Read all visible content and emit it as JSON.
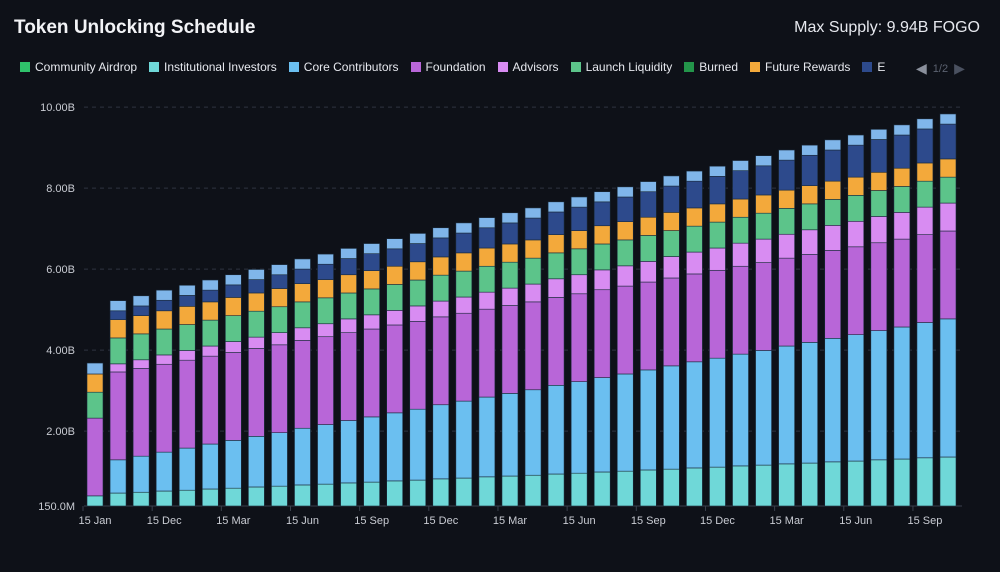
{
  "header": {
    "title": "Token Unlocking Schedule",
    "max_supply": "Max Supply: 9.94B FOGO"
  },
  "legend": {
    "page": "1/2",
    "items": [
      {
        "label": "Community Airdrop",
        "color": "#2fc26b"
      },
      {
        "label": "Institutional Investors",
        "color": "#6fd8d8"
      },
      {
        "label": "Core Contributors",
        "color": "#6bbff0"
      },
      {
        "label": "Foundation",
        "color": "#b866d8"
      },
      {
        "label": "Advisors",
        "color": "#d88cf2"
      },
      {
        "label": "Launch Liquidity",
        "color": "#5cc48a"
      },
      {
        "label": "Burned",
        "color": "#23954a"
      },
      {
        "label": "Future Rewards",
        "color": "#f3a93b"
      },
      {
        "label": "E",
        "color": "#2d4a8c"
      }
    ]
  },
  "chart_data": {
    "type": "bar",
    "stacked": true,
    "ylim": [
      0.15,
      10.2
    ],
    "y_unit": "B",
    "y_tick_labels": [
      {
        "v": 0.15,
        "label": "150.0M"
      },
      {
        "v": 2,
        "label": "2.00B"
      },
      {
        "v": 4,
        "label": "4.00B"
      },
      {
        "v": 6,
        "label": "6.00B"
      },
      {
        "v": 8,
        "label": "8.00B"
      },
      {
        "v": 10,
        "label": "10.00B"
      }
    ],
    "x_tick_labels": [
      "15 Jan",
      "15 Dec",
      "15 Mar",
      "15 Jun",
      "15 Sep",
      "15 Dec",
      "15 Mar",
      "15 Jun",
      "15 Sep",
      "15 Dec",
      "15 Mar",
      "15 Jun",
      "15 Sep"
    ],
    "x_tick_every": 3,
    "grid": true,
    "series": [
      {
        "name": "Institutional Investors",
        "color": "#6fd8d8",
        "values": [
          0.4,
          0.47,
          0.49,
          0.52,
          0.54,
          0.57,
          0.59,
          0.62,
          0.64,
          0.67,
          0.69,
          0.72,
          0.74,
          0.77,
          0.79,
          0.82,
          0.84,
          0.87,
          0.89,
          0.91,
          0.94,
          0.96,
          0.99,
          1.01,
          1.04,
          1.06,
          1.09,
          1.11,
          1.14,
          1.16,
          1.19,
          1.21,
          1.24,
          1.26,
          1.29,
          1.31,
          1.34,
          1.36
        ]
      },
      {
        "name": "Core Contributors",
        "color": "#6bbff0",
        "values": [
          0,
          0.82,
          0.89,
          0.96,
          1.04,
          1.11,
          1.18,
          1.25,
          1.32,
          1.4,
          1.47,
          1.54,
          1.61,
          1.68,
          1.75,
          1.83,
          1.9,
          1.97,
          2.04,
          2.11,
          2.19,
          2.26,
          2.33,
          2.4,
          2.47,
          2.55,
          2.62,
          2.69,
          2.76,
          2.83,
          2.91,
          2.98,
          3.05,
          3.12,
          3.19,
          3.26,
          3.34,
          3.41
        ]
      },
      {
        "name": "Foundation",
        "color": "#b866d8",
        "values": [
          1.92,
          2.17,
          2.17,
          2.17,
          2.17,
          2.17,
          2.17,
          2.17,
          2.17,
          2.17,
          2.17,
          2.17,
          2.17,
          2.17,
          2.17,
          2.17,
          2.17,
          2.17,
          2.17,
          2.17,
          2.17,
          2.17,
          2.17,
          2.17,
          2.17,
          2.17,
          2.17,
          2.17,
          2.17,
          2.17,
          2.17,
          2.17,
          2.17,
          2.17,
          2.17,
          2.17,
          2.17,
          2.17
        ]
      },
      {
        "name": "Advisors",
        "color": "#d88cf2",
        "values": [
          0,
          0.2,
          0.21,
          0.23,
          0.24,
          0.25,
          0.27,
          0.28,
          0.3,
          0.31,
          0.32,
          0.34,
          0.35,
          0.36,
          0.38,
          0.39,
          0.4,
          0.42,
          0.43,
          0.44,
          0.46,
          0.47,
          0.49,
          0.5,
          0.51,
          0.53,
          0.54,
          0.55,
          0.57,
          0.58,
          0.59,
          0.61,
          0.62,
          0.63,
          0.65,
          0.66,
          0.68,
          0.69
        ]
      },
      {
        "name": "Launch Liquidity",
        "color": "#5cc48a",
        "values": [
          0.64,
          0.64,
          0.64,
          0.64,
          0.64,
          0.64,
          0.64,
          0.64,
          0.64,
          0.64,
          0.64,
          0.64,
          0.64,
          0.64,
          0.64,
          0.64,
          0.64,
          0.64,
          0.64,
          0.64,
          0.64,
          0.64,
          0.64,
          0.64,
          0.64,
          0.64,
          0.64,
          0.64,
          0.64,
          0.64,
          0.64,
          0.64,
          0.64,
          0.64,
          0.64,
          0.64,
          0.64,
          0.64
        ]
      },
      {
        "name": "Future Rewards",
        "color": "#f3a93b",
        "values": [
          0.45,
          0.45,
          0.45,
          0.45,
          0.45,
          0.45,
          0.45,
          0.45,
          0.45,
          0.45,
          0.45,
          0.45,
          0.45,
          0.45,
          0.45,
          0.45,
          0.45,
          0.45,
          0.45,
          0.45,
          0.45,
          0.45,
          0.45,
          0.45,
          0.45,
          0.45,
          0.45,
          0.45,
          0.45,
          0.45,
          0.45,
          0.45,
          0.45,
          0.45,
          0.45,
          0.45,
          0.45,
          0.45
        ]
      },
      {
        "name": "E",
        "color": "#2d4a8c",
        "values": [
          0,
          0.22,
          0.24,
          0.26,
          0.27,
          0.29,
          0.31,
          0.33,
          0.34,
          0.36,
          0.38,
          0.4,
          0.42,
          0.43,
          0.45,
          0.47,
          0.49,
          0.5,
          0.52,
          0.54,
          0.56,
          0.58,
          0.59,
          0.61,
          0.63,
          0.65,
          0.66,
          0.68,
          0.7,
          0.72,
          0.74,
          0.75,
          0.77,
          0.79,
          0.81,
          0.82,
          0.84,
          0.86
        ]
      },
      {
        "color": "#80b6ea",
        "values": [
          0.27,
          0.25,
          0.25,
          0.25,
          0.25,
          0.25,
          0.25,
          0.25,
          0.25,
          0.25,
          0.25,
          0.25,
          0.25,
          0.25,
          0.25,
          0.25,
          0.25,
          0.25,
          0.25,
          0.25,
          0.25,
          0.25,
          0.25,
          0.25,
          0.25,
          0.25,
          0.25,
          0.25,
          0.25,
          0.25,
          0.25,
          0.25,
          0.25,
          0.25,
          0.25,
          0.25,
          0.25,
          0.25
        ]
      }
    ]
  }
}
